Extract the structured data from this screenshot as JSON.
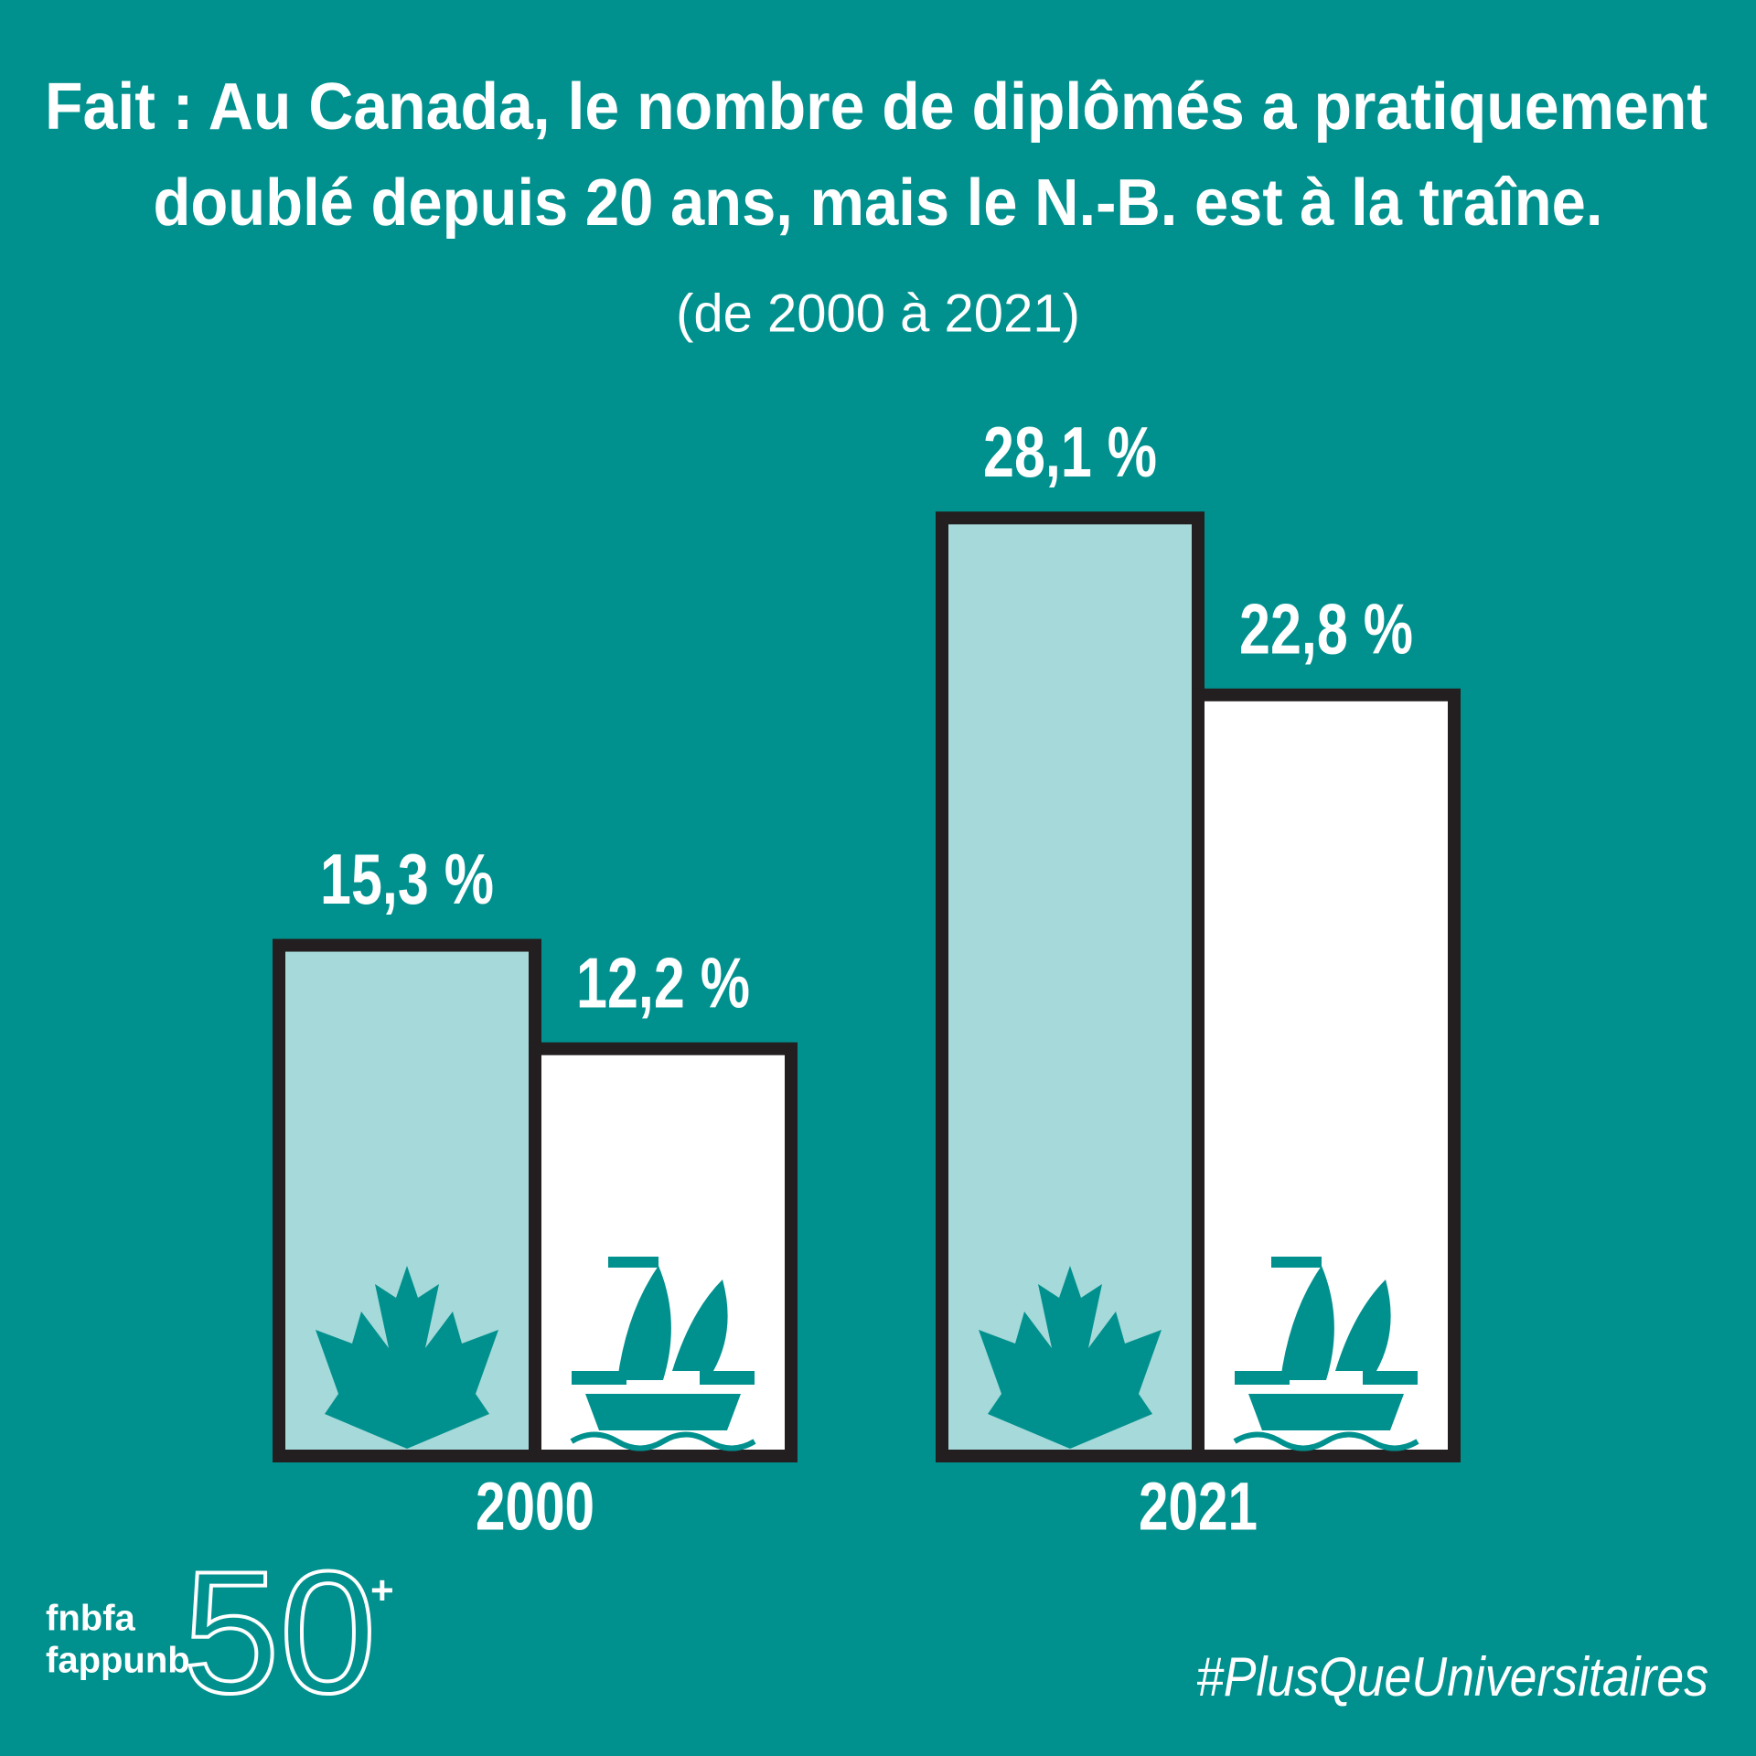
{
  "chart_data": {
    "type": "bar",
    "title": [
      "Fait : Au Canada, le nombre de diplômés a pratiquement",
      "doublé depuis 20 ans, mais le N.-B. est à la traîne."
    ],
    "subtitle": "(de 2000 à 2021)",
    "categories": [
      "2000",
      "2021"
    ],
    "series": [
      {
        "color": "#a6d9d9",
        "values": [
          15.3,
          28.1
        ],
        "value_labels": [
          "15,3 %",
          "28,1 %"
        ]
      },
      {
        "color": "#ffffff",
        "values": [
          12.2,
          22.8
        ],
        "value_labels": [
          "12,2 %",
          "22,8 %"
        ]
      }
    ],
    "ylim": [
      0,
      30
    ]
  },
  "footer": {
    "logo": [
      "fnbfa",
      "fappunb"
    ],
    "logo_number": "50",
    "logo_sup": "+",
    "hashtag": "#PlusQueUniversitaires"
  }
}
